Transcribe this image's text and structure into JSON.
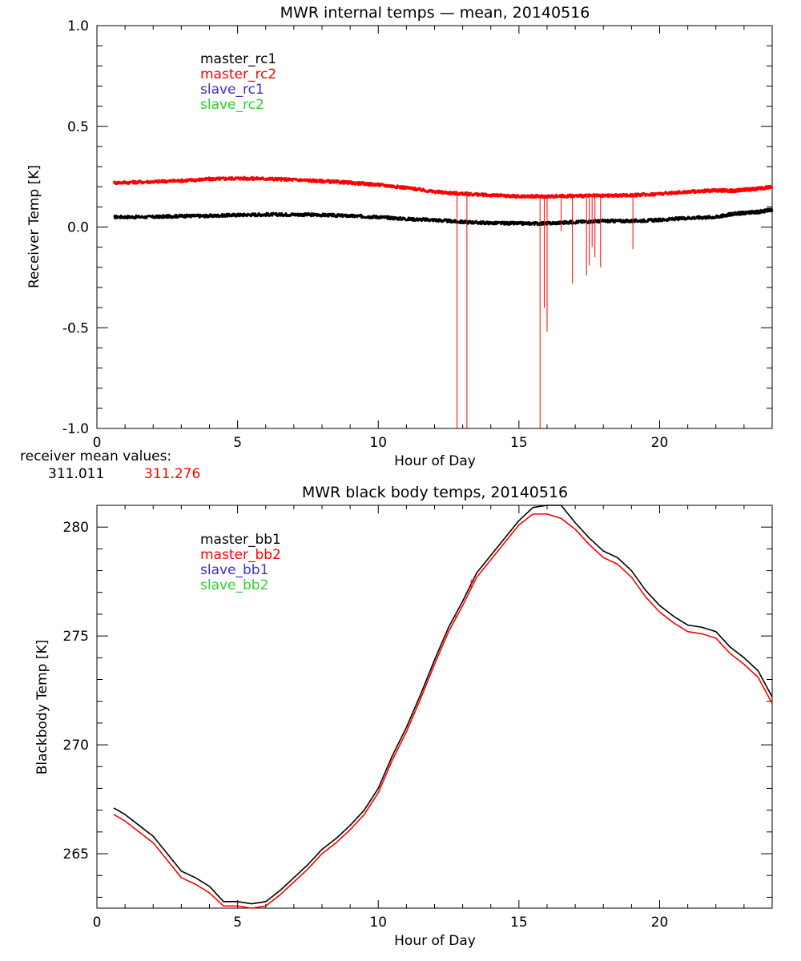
{
  "colors": {
    "background": "#ffffff",
    "axis": "#000000",
    "master1": "#000000",
    "master2": "#ff0000",
    "slave1": "#3f2fd0",
    "slave2": "#2fd02f"
  },
  "receiver_mean": {
    "label": "receiver mean values:",
    "values": [
      "311.011",
      "311.276"
    ]
  },
  "chart_data": [
    {
      "id": "top",
      "type": "line",
      "title": "MWR internal temps — mean, 20140516",
      "xlabel": "Hour of Day",
      "ylabel": "Receiver Temp [K]",
      "xlim": [
        0,
        24
      ],
      "ylim": [
        -1.0,
        1.0
      ],
      "xticks": [
        0,
        5,
        10,
        15,
        20
      ],
      "yticks": [
        -1.0,
        -0.5,
        0.0,
        0.5,
        1.0
      ],
      "ytick_labels": [
        "-1.0",
        "-0.5",
        "0.0",
        "0.5",
        "1.0"
      ],
      "legend_position": "top-left",
      "legend": [
        {
          "name": "master_rc1",
          "color": "#000000"
        },
        {
          "name": "master_rc2",
          "color": "#ff0000"
        },
        {
          "name": "slave_rc1",
          "color": "#3f2fd0"
        },
        {
          "name": "slave_rc2",
          "color": "#2fd02f"
        }
      ],
      "series": [
        {
          "name": "master_rc1",
          "color": "#000000",
          "x": [
            0.6,
            2,
            3,
            4,
            5,
            6,
            7,
            8,
            9,
            10,
            11,
            12,
            13,
            14,
            15,
            16,
            17,
            18,
            19,
            20,
            21,
            22,
            22.6,
            23,
            23.5,
            24
          ],
          "y": [
            0.05,
            0.05,
            0.055,
            0.055,
            0.06,
            0.062,
            0.062,
            0.06,
            0.055,
            0.05,
            0.04,
            0.035,
            0.025,
            0.02,
            0.018,
            0.018,
            0.025,
            0.03,
            0.03,
            0.035,
            0.045,
            0.05,
            0.065,
            0.07,
            0.075,
            0.085
          ],
          "spikes": []
        },
        {
          "name": "master_rc2",
          "color": "#ff0000",
          "x": [
            0.6,
            2,
            3,
            4,
            5,
            6,
            7,
            8,
            9,
            10,
            11,
            12,
            13,
            14,
            15,
            16,
            17,
            18,
            19,
            20,
            21,
            22,
            22.6,
            23,
            23.5,
            24
          ],
          "y": [
            0.22,
            0.225,
            0.23,
            0.238,
            0.242,
            0.24,
            0.235,
            0.228,
            0.22,
            0.21,
            0.195,
            0.175,
            0.165,
            0.158,
            0.152,
            0.152,
            0.155,
            0.155,
            0.158,
            0.165,
            0.175,
            0.182,
            0.18,
            0.185,
            0.19,
            0.2
          ],
          "spikes": [
            [
              12.8,
              -1.0
            ],
            [
              13.15,
              -1.0
            ],
            [
              15.75,
              -1.0
            ],
            [
              15.9,
              -0.4
            ],
            [
              16.0,
              -0.52
            ],
            [
              16.5,
              -0.02
            ],
            [
              16.9,
              -0.28
            ],
            [
              17.4,
              -0.24
            ],
            [
              17.5,
              -0.19
            ],
            [
              17.6,
              -0.1
            ],
            [
              17.7,
              -0.15
            ],
            [
              17.9,
              -0.2
            ],
            [
              19.05,
              -0.11
            ]
          ]
        }
      ]
    },
    {
      "id": "bottom",
      "type": "line",
      "title": "MWR black body temps, 20140516",
      "xlabel": "Hour of Day",
      "ylabel": "Blackbody Temp [K]",
      "xlim": [
        0,
        24
      ],
      "ylim": [
        262.5,
        281
      ],
      "xticks": [
        0,
        5,
        10,
        15,
        20
      ],
      "yticks": [
        265,
        270,
        275,
        280
      ],
      "ytick_labels": [
        "265",
        "270",
        "275",
        "280"
      ],
      "legend_position": "top-left",
      "legend": [
        {
          "name": "master_bb1",
          "color": "#000000"
        },
        {
          "name": "master_bb2",
          "color": "#ff0000"
        },
        {
          "name": "slave_bb1",
          "color": "#3f2fd0"
        },
        {
          "name": "slave_bb2",
          "color": "#2fd02f"
        }
      ],
      "series": [
        {
          "name": "master_bb1",
          "color": "#000000",
          "x": [
            0.6,
            1.0,
            1.5,
            2.0,
            2.5,
            3.0,
            3.5,
            4.0,
            4.5,
            5.0,
            5.5,
            6.0,
            6.5,
            7.0,
            7.5,
            8.0,
            8.5,
            9.0,
            9.5,
            10.0,
            10.5,
            11.0,
            11.5,
            12.0,
            12.5,
            13.0,
            13.5,
            14.0,
            14.5,
            15.0,
            15.5,
            16.0,
            16.5,
            17.0,
            17.5,
            18.0,
            18.5,
            19.0,
            19.5,
            20.0,
            20.5,
            21.0,
            21.5,
            22.0,
            22.5,
            23.0,
            23.5,
            24.0
          ],
          "y": [
            267.1,
            266.8,
            266.3,
            265.8,
            265.0,
            264.2,
            263.9,
            263.5,
            262.8,
            262.8,
            262.7,
            262.8,
            263.3,
            263.9,
            264.5,
            265.2,
            265.7,
            266.3,
            267.0,
            268.0,
            269.5,
            270.8,
            272.3,
            273.9,
            275.4,
            276.6,
            277.9,
            278.7,
            279.5,
            280.3,
            280.9,
            281.0,
            281.0,
            280.2,
            279.5,
            278.9,
            278.6,
            278.0,
            277.1,
            276.4,
            275.9,
            275.5,
            275.4,
            275.2,
            274.5,
            274.0,
            273.4,
            272.2
          ],
          "spikes": []
        },
        {
          "name": "master_bb2",
          "color": "#ff0000",
          "x": [
            0.6,
            1.0,
            1.5,
            2.0,
            2.5,
            3.0,
            3.5,
            4.0,
            4.5,
            5.0,
            5.5,
            6.0,
            6.5,
            7.0,
            7.5,
            8.0,
            8.5,
            9.0,
            9.5,
            10.0,
            10.5,
            11.0,
            11.5,
            12.0,
            12.5,
            13.0,
            13.5,
            14.0,
            14.5,
            15.0,
            15.5,
            16.0,
            16.5,
            17.0,
            17.5,
            18.0,
            18.5,
            19.0,
            19.5,
            20.0,
            20.5,
            21.0,
            21.5,
            22.0,
            22.5,
            23.0,
            23.5,
            24.0
          ],
          "y": [
            266.8,
            266.5,
            266.0,
            265.5,
            264.7,
            263.9,
            263.6,
            263.2,
            262.6,
            262.6,
            262.5,
            262.6,
            263.1,
            263.7,
            264.3,
            265.0,
            265.5,
            266.1,
            266.8,
            267.8,
            269.3,
            270.6,
            272.1,
            273.7,
            275.2,
            276.4,
            277.7,
            278.5,
            279.3,
            280.1,
            280.6,
            280.6,
            280.4,
            279.9,
            279.2,
            278.6,
            278.3,
            277.7,
            276.8,
            276.1,
            275.6,
            275.2,
            275.1,
            274.9,
            274.2,
            273.7,
            273.1,
            271.9
          ],
          "spikes": [
            [
              12.75,
              276.0
            ],
            [
              13.3,
              277.6
            ]
          ]
        }
      ]
    }
  ]
}
